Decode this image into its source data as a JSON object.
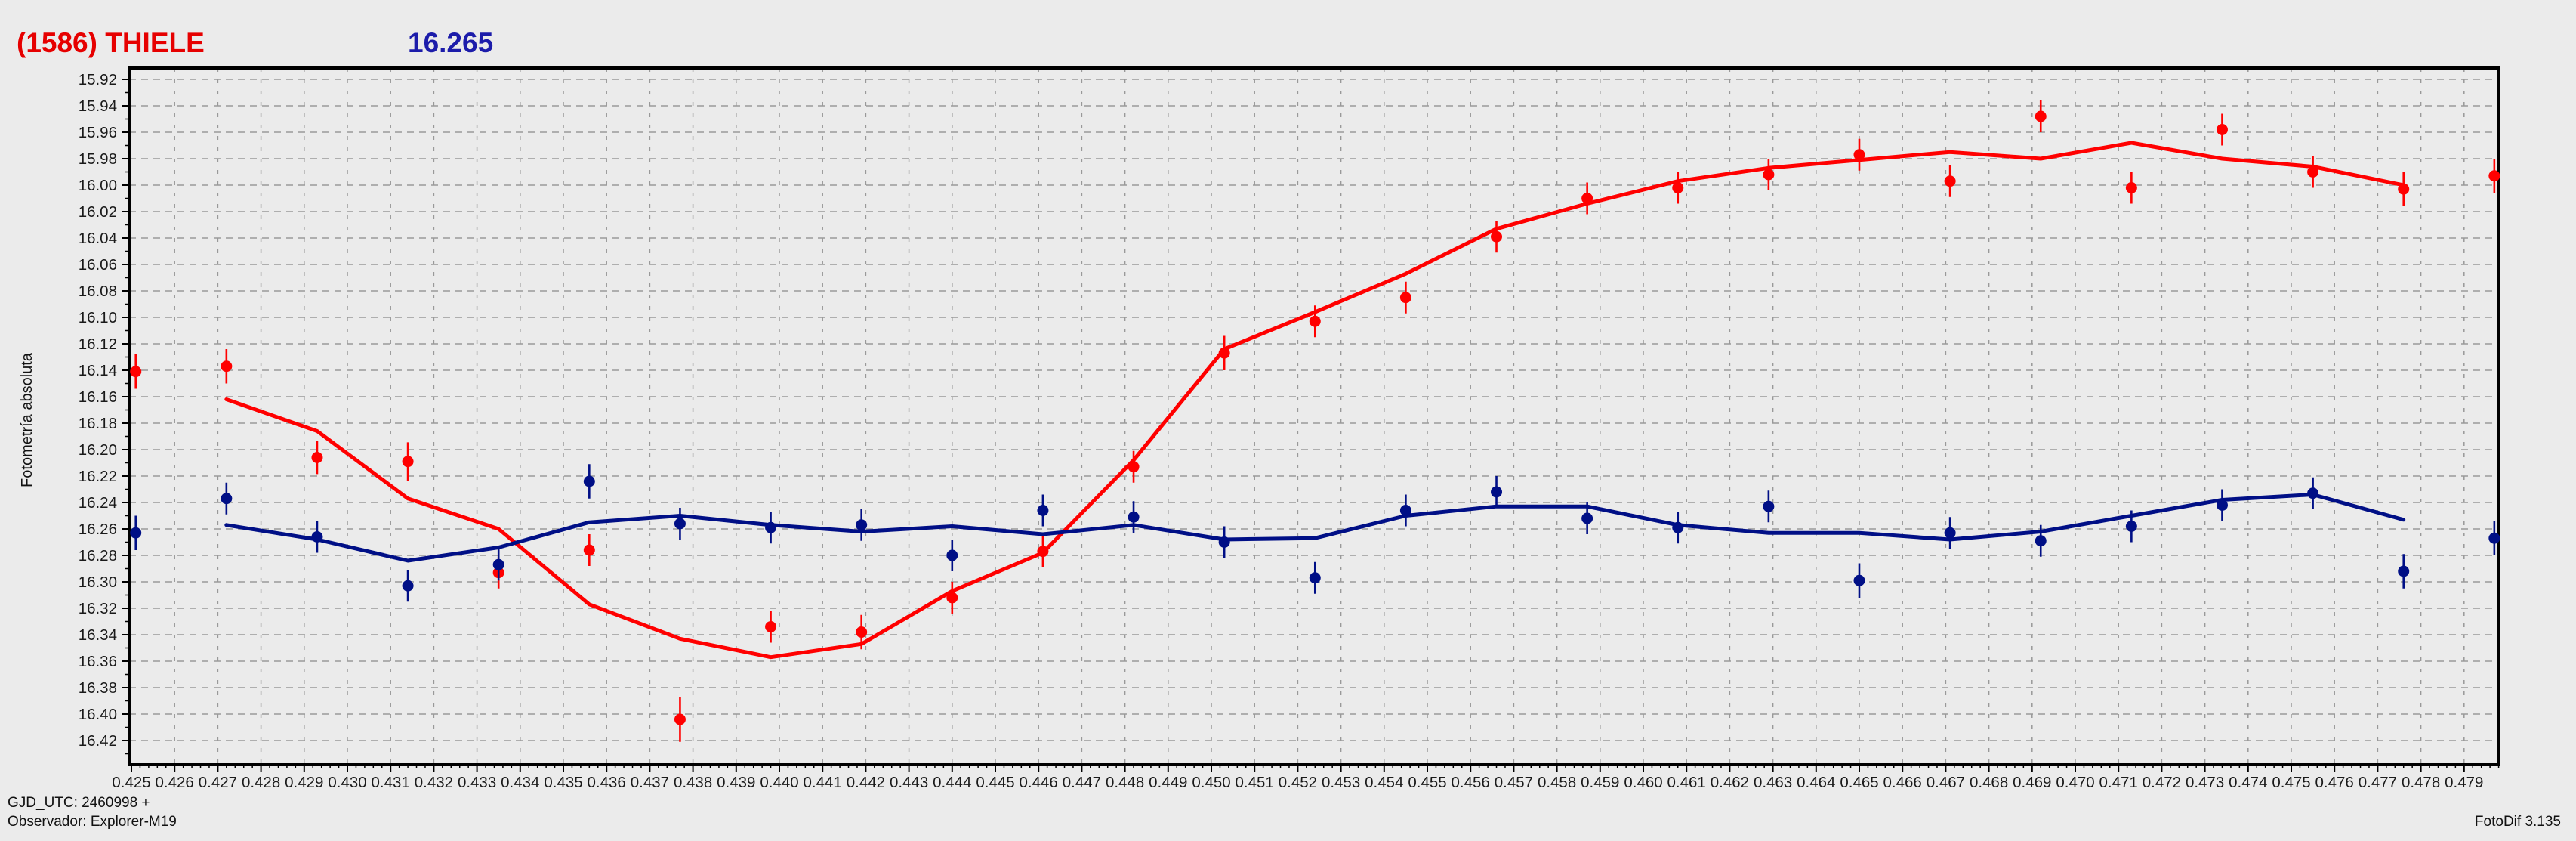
{
  "header": {
    "title": "(1586) THIELE",
    "title_color": "#e60000",
    "value": "16.265",
    "value_color": "#1c1caa"
  },
  "footer": {
    "gjd_line": "GJD_UTC: 2460998 +",
    "observer_line": "Observador: Explorer-M19",
    "software_line": "FotoDif 3.135"
  },
  "chart_data": {
    "type": "scatter",
    "title": "",
    "xlabel": "",
    "ylabel": "Fotometría absoluta",
    "xlim": [
      0.425,
      0.4798
    ],
    "ylim_top": 15.911,
    "ylim_bottom": 16.438,
    "x_ticks": {
      "min": 0.425,
      "max": 0.479,
      "step": 0.001,
      "minor_step": 0.0002,
      "decimals": 3
    },
    "y_ticks": {
      "min": 15.92,
      "max": 16.42,
      "step": 0.02,
      "minor_step": 0.01,
      "decimals": 2
    },
    "grid": {
      "on": true,
      "color": "#999999"
    },
    "legend_position": "none",
    "y_axis_inverted_note": "magnitudes: smaller value plotted higher",
    "colors": {
      "target": "#ff0000",
      "check": "#000f86"
    },
    "series": [
      {
        "name": "target-measured",
        "type": "scatter-errorbar",
        "color": "#ff0000",
        "x": [
          0.4251,
          0.4272,
          0.4293,
          0.4314,
          0.4335,
          0.4356,
          0.4377,
          0.4398,
          0.4419,
          0.444,
          0.4461,
          0.4482,
          0.4503,
          0.4524,
          0.4545,
          0.4566,
          0.4587,
          0.4608,
          0.4629,
          0.465,
          0.4671,
          0.4692,
          0.4713,
          0.4734,
          0.4755,
          0.4776,
          0.4797
        ],
        "y": [
          16.141,
          16.137,
          16.206,
          16.209,
          16.293,
          16.276,
          16.404,
          16.334,
          16.338,
          16.312,
          16.277,
          16.213,
          16.127,
          16.103,
          16.085,
          16.039,
          16.01,
          16.002,
          15.992,
          15.977,
          15.997,
          15.948,
          16.002,
          15.958,
          15.99,
          16.003,
          15.993
        ],
        "err": [
          0.013,
          0.013,
          0.0125,
          0.0145,
          0.012,
          0.012,
          0.017,
          0.012,
          0.013,
          0.012,
          0.012,
          0.012,
          0.013,
          0.012,
          0.012,
          0.012,
          0.012,
          0.012,
          0.012,
          0.012,
          0.012,
          0.012,
          0.012,
          0.012,
          0.012,
          0.013,
          0.013
        ]
      },
      {
        "name": "target-fit-curve",
        "type": "line",
        "color": "#ff0000",
        "x": [
          0.4272,
          0.4293,
          0.4314,
          0.4335,
          0.4356,
          0.4377,
          0.4398,
          0.4419,
          0.444,
          0.4461,
          0.4482,
          0.4503,
          0.4524,
          0.4545,
          0.4566,
          0.4587,
          0.4608,
          0.4629,
          0.465,
          0.4671,
          0.4692,
          0.4713,
          0.4734,
          0.4755,
          0.4776
        ],
        "y": [
          16.162,
          16.186,
          16.237,
          16.26,
          16.317,
          16.343,
          16.357,
          16.347,
          16.307,
          16.278,
          16.208,
          16.124,
          16.096,
          16.067,
          16.033,
          16.014,
          15.997,
          15.987,
          15.981,
          15.975,
          15.98,
          15.968,
          15.98,
          15.986,
          16.0
        ]
      },
      {
        "name": "check-star-measured",
        "type": "scatter-errorbar",
        "color": "#000f86",
        "x": [
          0.4251,
          0.4272,
          0.4293,
          0.4314,
          0.4335,
          0.4356,
          0.4377,
          0.4398,
          0.4419,
          0.444,
          0.4461,
          0.4482,
          0.4503,
          0.4524,
          0.4545,
          0.4566,
          0.4587,
          0.4608,
          0.4629,
          0.465,
          0.4671,
          0.4692,
          0.4713,
          0.4734,
          0.4755,
          0.4776,
          0.4797
        ],
        "y": [
          16.263,
          16.237,
          16.266,
          16.303,
          16.287,
          16.224,
          16.256,
          16.259,
          16.257,
          16.28,
          16.246,
          16.251,
          16.27,
          16.297,
          16.246,
          16.232,
          16.252,
          16.259,
          16.243,
          16.299,
          16.263,
          16.269,
          16.258,
          16.242,
          16.233,
          16.292,
          16.267
        ],
        "err": [
          0.013,
          0.012,
          0.012,
          0.012,
          0.012,
          0.013,
          0.012,
          0.012,
          0.012,
          0.012,
          0.012,
          0.012,
          0.012,
          0.012,
          0.012,
          0.012,
          0.012,
          0.012,
          0.012,
          0.013,
          0.012,
          0.012,
          0.012,
          0.012,
          0.012,
          0.013,
          0.013
        ]
      },
      {
        "name": "check-star-smooth-curve",
        "type": "line",
        "color": "#000f86",
        "x": [
          0.4272,
          0.4293,
          0.4314,
          0.4335,
          0.4356,
          0.4377,
          0.4398,
          0.4419,
          0.444,
          0.4461,
          0.4482,
          0.4503,
          0.4524,
          0.4545,
          0.4566,
          0.4587,
          0.4608,
          0.4629,
          0.465,
          0.4671,
          0.4692,
          0.4713,
          0.4734,
          0.4755,
          0.4776
        ],
        "y": [
          16.257,
          16.268,
          16.284,
          16.274,
          16.255,
          16.25,
          16.257,
          16.262,
          16.258,
          16.264,
          16.257,
          16.268,
          16.267,
          16.25,
          16.243,
          16.243,
          16.257,
          16.263,
          16.263,
          16.268,
          16.262,
          16.25,
          16.238,
          16.234,
          16.253
        ]
      }
    ]
  }
}
